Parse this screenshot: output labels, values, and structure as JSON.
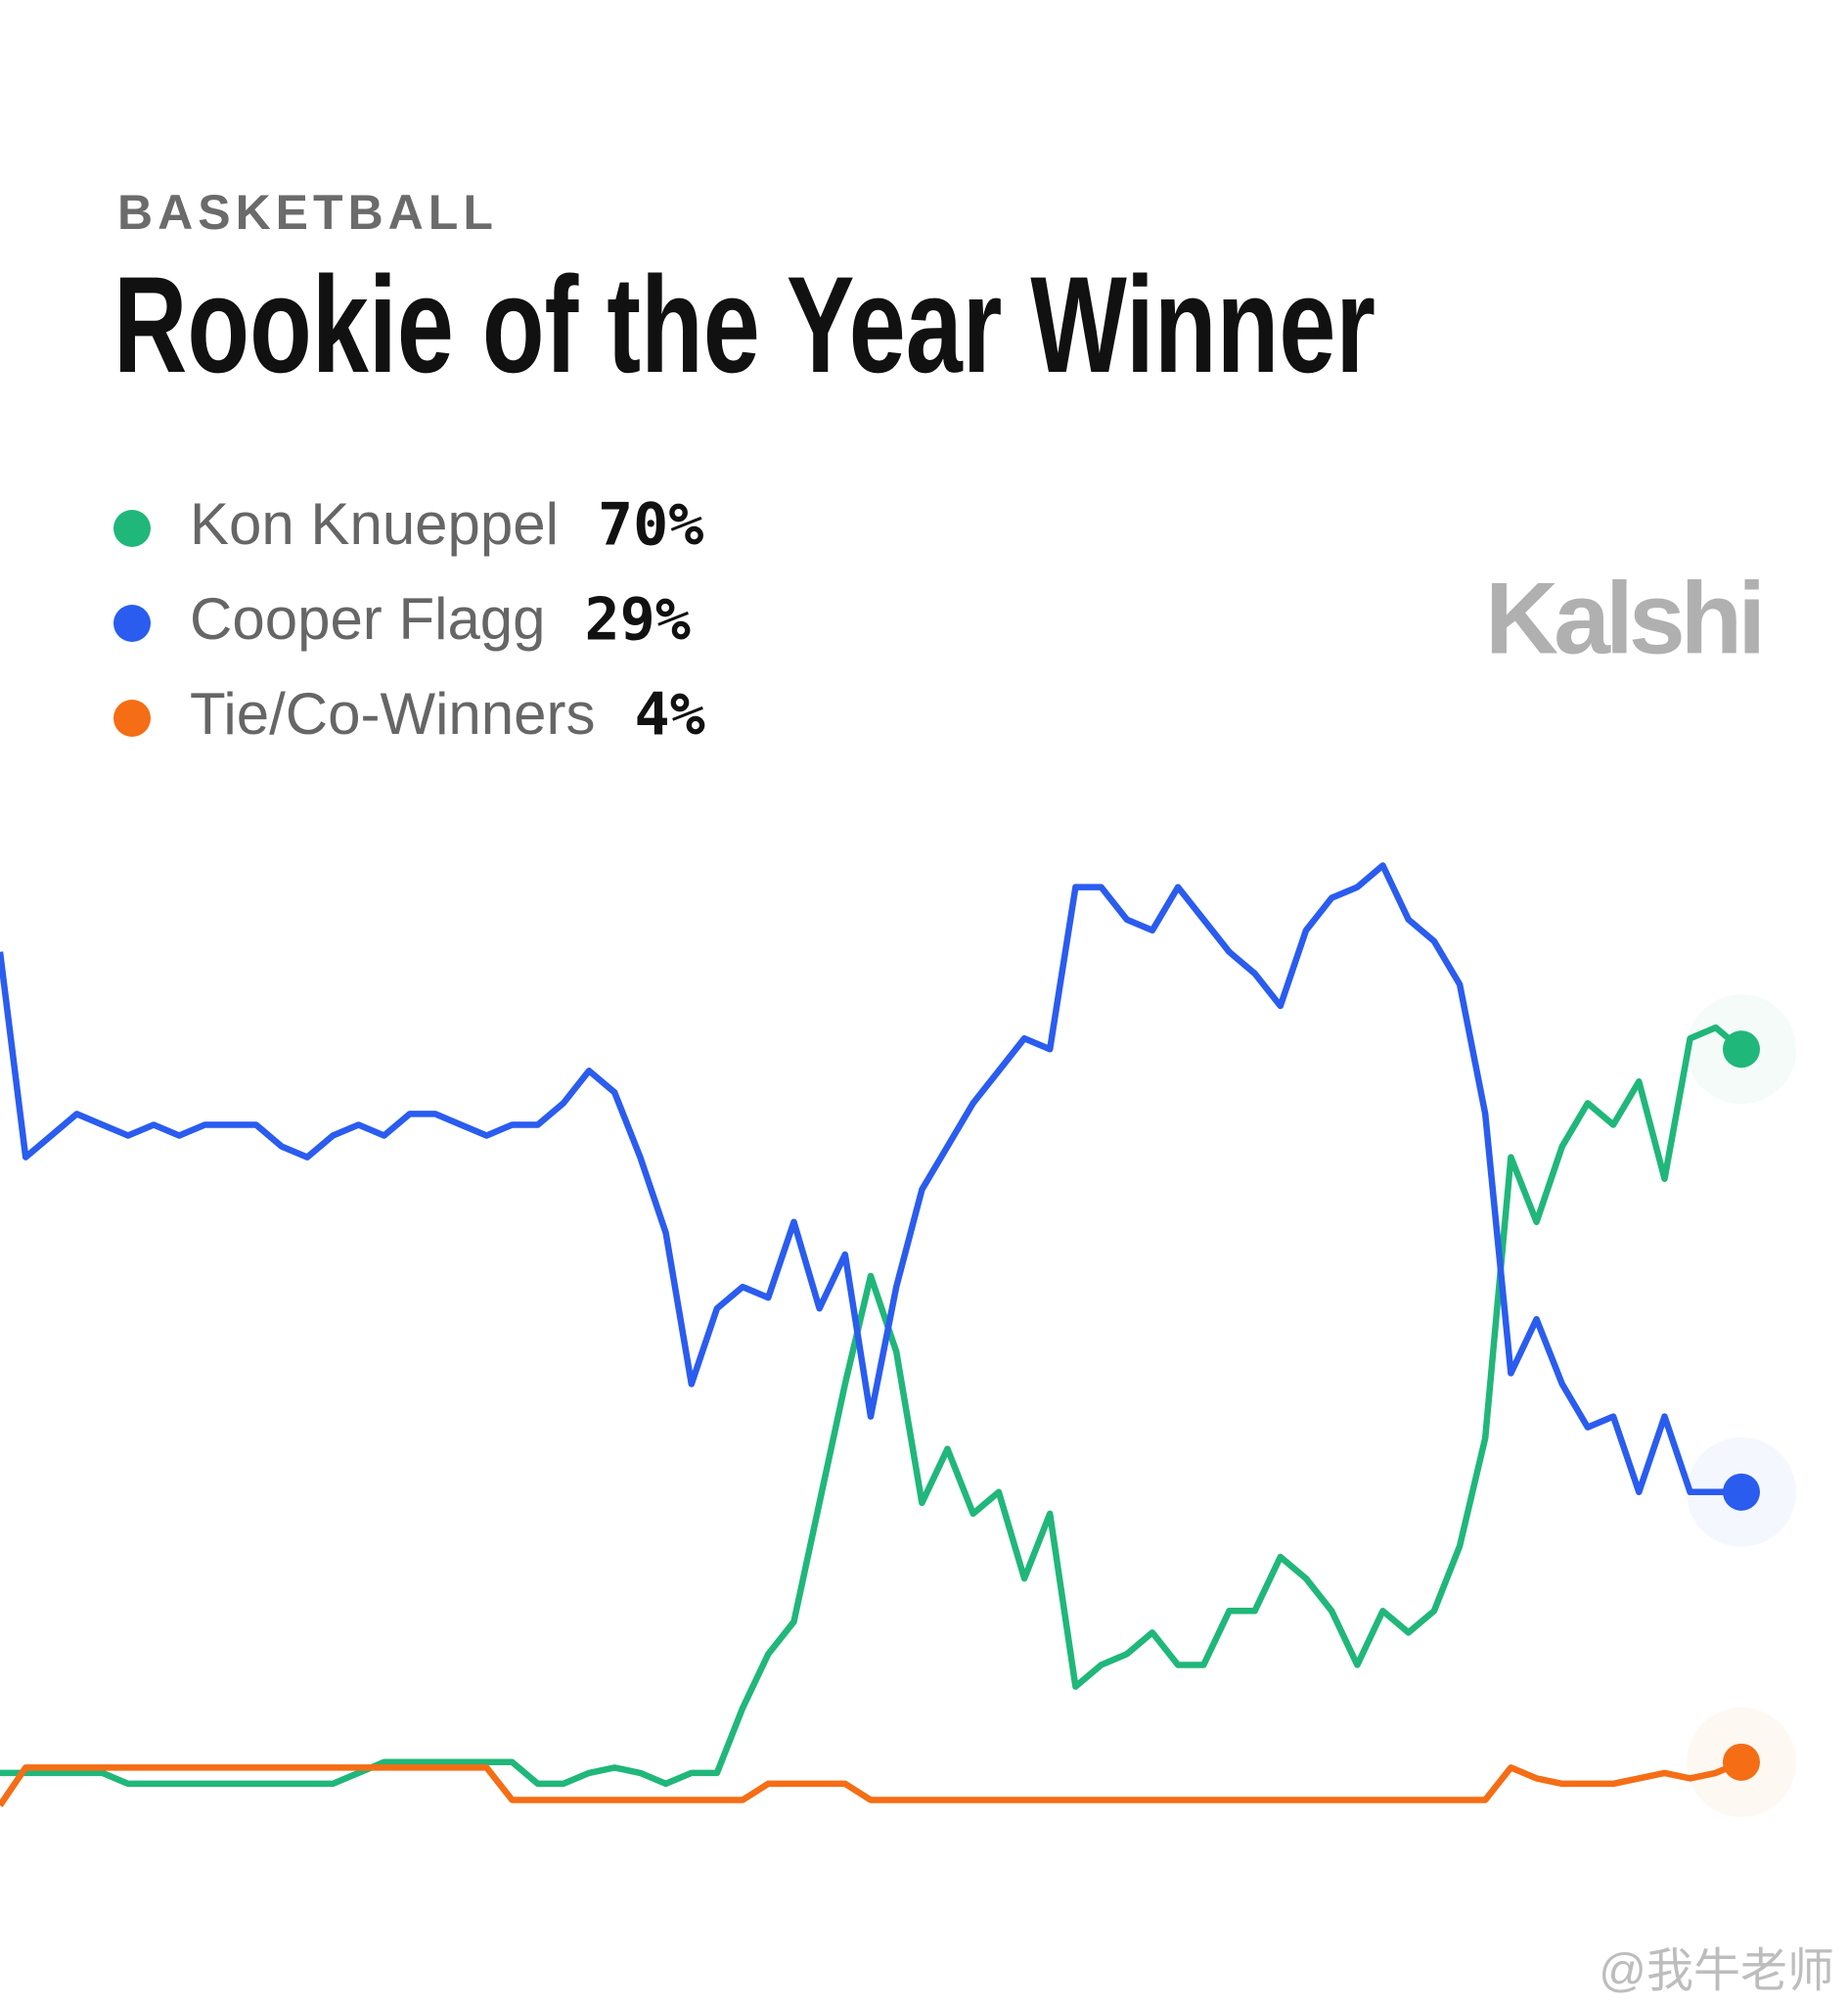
{
  "chart_data": {
    "type": "line",
    "category": "BASKETBALL",
    "title": "Rookie of the Year Winner",
    "brand": "Kalshi",
    "watermark": "@我牛老师",
    "ylim": [
      0,
      100
    ],
    "series": [
      {
        "name": "Kon Knueppel",
        "color": "#20b77a",
        "current": 70,
        "current_label": "70%",
        "values": [
          3,
          3,
          3,
          3,
          3,
          2,
          2,
          2,
          2,
          2,
          2,
          2,
          2,
          2,
          3,
          4,
          4,
          4,
          4,
          4,
          4,
          2,
          2,
          3,
          3.5,
          3,
          2,
          3,
          3,
          9,
          14,
          17,
          28,
          39,
          49,
          42,
          28,
          33,
          27,
          29,
          21,
          27,
          11,
          13,
          14,
          16,
          13,
          13,
          18,
          18,
          23,
          21,
          18,
          13,
          18,
          16,
          18,
          24,
          34,
          60,
          54,
          61,
          65,
          63,
          67,
          58,
          71,
          72,
          70
        ]
      },
      {
        "name": "Cooper Flagg",
        "color": "#2a5cf0",
        "current": 29,
        "current_label": "29%",
        "values": [
          79,
          60,
          62,
          64,
          63,
          62,
          63,
          62,
          63,
          63,
          63,
          61,
          60,
          62,
          63,
          62,
          64,
          64,
          63,
          62,
          63,
          63,
          65,
          68,
          66,
          60,
          53,
          39,
          46,
          48,
          47,
          54,
          46,
          51,
          36,
          48,
          57,
          61,
          65,
          68,
          71,
          70,
          85,
          85,
          82,
          81,
          85,
          82,
          79,
          77,
          74,
          81,
          84,
          85,
          87,
          82,
          80,
          76,
          64,
          40,
          45,
          39,
          35,
          36,
          29,
          36,
          29,
          29,
          29
        ]
      },
      {
        "name": "Tie/Co-Winners",
        "color": "#f56d14",
        "current": 4,
        "current_label": "4%",
        "values": [
          0,
          3.5,
          3.5,
          3.5,
          3.5,
          3.5,
          3.5,
          3.5,
          3.5,
          3.5,
          3.5,
          3.5,
          3.5,
          3.5,
          3.5,
          3.5,
          3.5,
          3.5,
          3.5,
          3.5,
          0.5,
          0.5,
          0.5,
          0.5,
          0.5,
          0.5,
          0.5,
          0.5,
          0.5,
          0.5,
          2,
          2,
          2,
          2,
          0.5,
          0.5,
          0.5,
          0.5,
          0.5,
          0.5,
          0.5,
          0.5,
          0.5,
          0.5,
          0.5,
          0.5,
          0.5,
          0.5,
          0.5,
          0.5,
          0.5,
          0.5,
          0.5,
          0.5,
          0.5,
          0.5,
          0.5,
          0.5,
          0.5,
          3.5,
          2.5,
          2,
          2,
          2,
          2.5,
          3,
          2.5,
          3,
          4
        ]
      }
    ]
  }
}
